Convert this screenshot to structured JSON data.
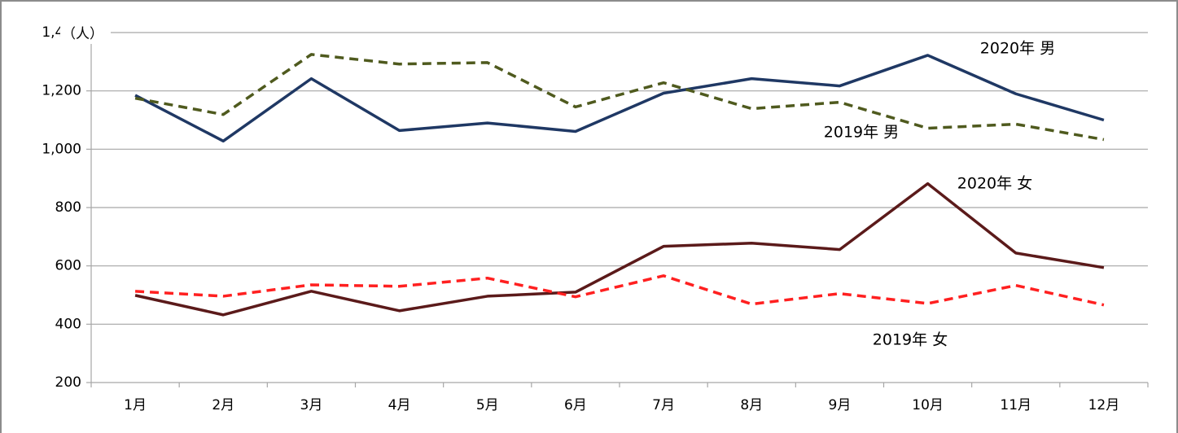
{
  "chart_data": {
    "type": "line",
    "categories": [
      "1月",
      "2月",
      "3月",
      "4月",
      "5月",
      "6月",
      "7月",
      "8月",
      "9月",
      "10月",
      "11月",
      "12月"
    ],
    "unit": "（人）",
    "series": [
      {
        "name": "2020年 男",
        "color": "#1f3864",
        "dash": false,
        "values": [
          1185,
          1028,
          1242,
          1064,
          1090,
          1061,
          1192,
          1242,
          1217,
          1322,
          1190,
          1100
        ]
      },
      {
        "name": "2019年 男",
        "color": "#4f5a1e",
        "dash": true,
        "values": [
          1175,
          1119,
          1325,
          1292,
          1297,
          1145,
          1228,
          1139,
          1161,
          1072,
          1086,
          1033
        ]
      },
      {
        "name": "2020年 女",
        "color": "#5b1a1a",
        "dash": false,
        "values": [
          499,
          432,
          513,
          446,
          496,
          510,
          667,
          678,
          656,
          882,
          644,
          594
        ]
      },
      {
        "name": "2019年 女",
        "color": "#ff2020",
        "dash": true,
        "values": [
          513,
          496,
          535,
          530,
          558,
          494,
          566,
          469,
          505,
          471,
          533,
          466
        ]
      }
    ],
    "ylim": [
      200,
      1400
    ],
    "yticks": [
      200,
      400,
      600,
      800,
      {
        "value": 1000,
        "label": "1,000"
      },
      {
        "value": 1200,
        "label": "1,200"
      },
      {
        "value": 1400,
        "label": "1,400"
      }
    ],
    "grid": true
  }
}
